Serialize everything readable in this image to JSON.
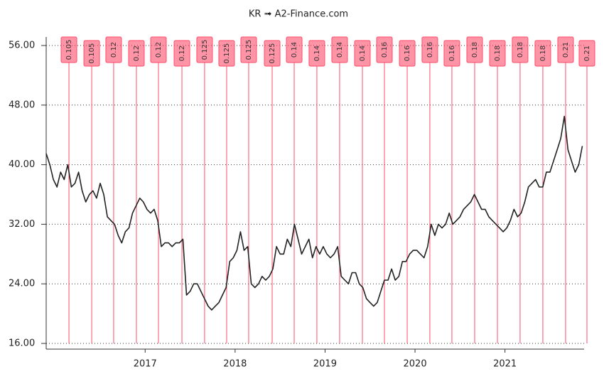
{
  "chart_data": {
    "type": "line",
    "title": "KR ➟ A2-Finance.com",
    "x": [
      2015.9,
      2015.94,
      2015.98,
      2016.02,
      2016.06,
      2016.1,
      2016.14,
      2016.18,
      2016.22,
      2016.26,
      2016.3,
      2016.34,
      2016.38,
      2016.42,
      2016.46,
      2016.5,
      2016.54,
      2016.58,
      2016.62,
      2016.66,
      2016.7,
      2016.74,
      2016.78,
      2016.82,
      2016.86,
      2016.9,
      2016.94,
      2016.98,
      2017.02,
      2017.06,
      2017.1,
      2017.14,
      2017.18,
      2017.22,
      2017.26,
      2017.3,
      2017.34,
      2017.38,
      2017.42,
      2017.46,
      2017.5,
      2017.54,
      2017.58,
      2017.62,
      2017.66,
      2017.7,
      2017.74,
      2017.78,
      2017.82,
      2017.86,
      2017.9,
      2017.94,
      2017.98,
      2018.02,
      2018.06,
      2018.1,
      2018.14,
      2018.18,
      2018.22,
      2018.26,
      2018.3,
      2018.34,
      2018.38,
      2018.42,
      2018.46,
      2018.5,
      2018.54,
      2018.58,
      2018.62,
      2018.66,
      2018.7,
      2018.74,
      2018.78,
      2018.82,
      2018.86,
      2018.9,
      2018.94,
      2018.98,
      2019.02,
      2019.06,
      2019.1,
      2019.14,
      2019.18,
      2019.22,
      2019.26,
      2019.3,
      2019.34,
      2019.38,
      2019.42,
      2019.46,
      2019.5,
      2019.54,
      2019.58,
      2019.62,
      2019.66,
      2019.7,
      2019.74,
      2019.78,
      2019.82,
      2019.86,
      2019.9,
      2019.94,
      2019.98,
      2020.02,
      2020.06,
      2020.1,
      2020.14,
      2020.18,
      2020.22,
      2020.26,
      2020.3,
      2020.34,
      2020.38,
      2020.42,
      2020.46,
      2020.5,
      2020.54,
      2020.58,
      2020.62,
      2020.66,
      2020.7,
      2020.74,
      2020.78,
      2020.82,
      2020.86,
      2020.9,
      2020.94,
      2020.98,
      2021.02,
      2021.06,
      2021.1,
      2021.14,
      2021.18,
      2021.22,
      2021.26,
      2021.3,
      2021.34,
      2021.38,
      2021.42,
      2021.46,
      2021.5,
      2021.54,
      2021.58,
      2021.62,
      2021.66,
      2021.7,
      2021.74,
      2021.78,
      2021.82,
      2021.86
    ],
    "series": [
      {
        "color": "#222222",
        "values": [
          41.5,
          40,
          38,
          37,
          39,
          38,
          40,
          37,
          37.5,
          39,
          36.5,
          35,
          36,
          36.5,
          35.5,
          37.5,
          36,
          33,
          32.5,
          32,
          30.5,
          29.5,
          31,
          31.5,
          33.5,
          34.5,
          35.5,
          35,
          34,
          33.5,
          34,
          32.5,
          29,
          29.5,
          29.5,
          29,
          29.5,
          29.5,
          30,
          22.5,
          23,
          24,
          24,
          23,
          22,
          21,
          20.5,
          21,
          21.5,
          22.5,
          23.5,
          27,
          27.5,
          28.5,
          31,
          28.5,
          29,
          24,
          23.5,
          24,
          25,
          24.5,
          25,
          26,
          29,
          28,
          28,
          30,
          29,
          32,
          30,
          28,
          29,
          30,
          27.5,
          29,
          28,
          29,
          28,
          27.5,
          28,
          29,
          25,
          24.5,
          24,
          25.5,
          25.5,
          24,
          23.5,
          22,
          21.5,
          21,
          21.5,
          23,
          24.5,
          24.5,
          26,
          24.5,
          25,
          27,
          27,
          28,
          28.5,
          28.5,
          28,
          27.5,
          29,
          32,
          30.5,
          32,
          31.5,
          32,
          33.5,
          32,
          32.5,
          33,
          34,
          34.5,
          35,
          36,
          35,
          34,
          34,
          33,
          32.5,
          32,
          31.5,
          31,
          31.5,
          32.5,
          34,
          33,
          33.5,
          35,
          37,
          37.5,
          38,
          37,
          37,
          39,
          39,
          40.5,
          42,
          43.5,
          46.5,
          42,
          40.5,
          39,
          40,
          42.5
        ]
      }
    ],
    "dividends": {
      "color": "#ff4d6a",
      "x": [
        2016.153,
        2016.406,
        2016.65,
        2016.903,
        2017.148,
        2017.409,
        2017.661,
        2017.906,
        2018.151,
        2018.412,
        2018.657,
        2018.909,
        2019.162,
        2019.415,
        2019.66,
        2019.913,
        2020.165,
        2020.41,
        2020.663,
        2020.916,
        2021.168,
        2021.421,
        2021.674,
        2021.911
      ],
      "values": [
        0.105,
        0.105,
        0.12,
        0.12,
        0.12,
        0.12,
        0.125,
        0.125,
        0.125,
        0.125,
        0.14,
        0.14,
        0.14,
        0.14,
        0.16,
        0.16,
        0.16,
        0.16,
        0.18,
        0.18,
        0.18,
        0.18,
        0.21,
        0.21
      ]
    },
    "xlim": [
      2015.9,
      2021.927
    ],
    "xticks": [
      2017,
      2018,
      2019,
      2020,
      2021
    ],
    "ylim": [
      16,
      56
    ],
    "yticks": [
      {
        "value": 16,
        "label": "16.00"
      },
      {
        "value": 24,
        "label": "24.00"
      },
      {
        "value": 32,
        "label": "32.00"
      },
      {
        "value": 40,
        "label": "40.00"
      },
      {
        "value": 48,
        "label": "48.00"
      },
      {
        "value": 56,
        "label": "56.00"
      }
    ],
    "grid": true
  }
}
